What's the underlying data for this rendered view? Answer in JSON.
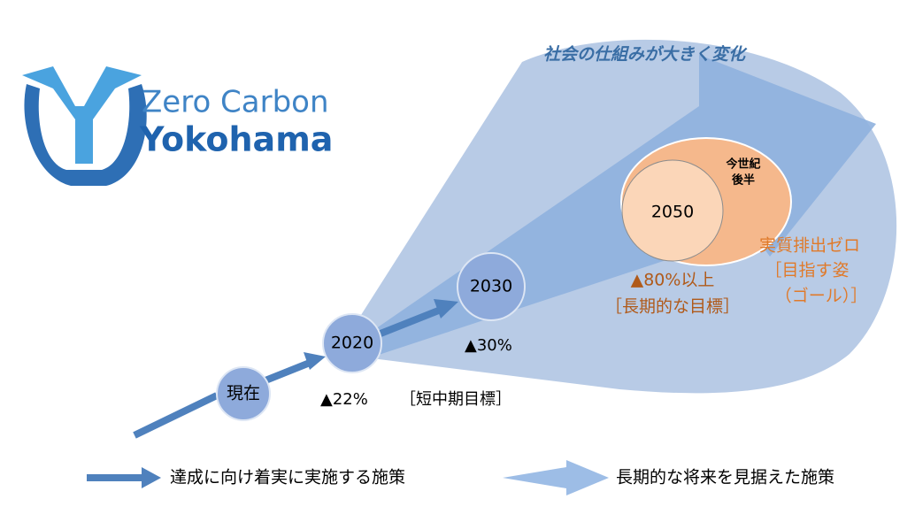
{
  "logo": {
    "line1": "Zero Carbon",
    "line2": "Yokohama"
  },
  "headline": "社会の仕組みが大きく変化",
  "nodes": [
    {
      "label": "現在"
    },
    {
      "label": "2020"
    },
    {
      "label": "2030"
    },
    {
      "label": "2050"
    },
    {
      "label_line1": "今世紀",
      "label_line2": "後半"
    }
  ],
  "annotations": {
    "target_2020": "▲22%",
    "short_mid_term": "［短中期目標］",
    "target_2030": "▲30%",
    "target_2050": "▲80%以上",
    "long_term": "［長期的な目標］",
    "goal_line1": "実質排出ゼロ",
    "goal_line2": "［目指す姿",
    "goal_line3": "（ゴール）］"
  },
  "legend": [
    {
      "label": "達成に向け着実に実施する施策"
    },
    {
      "label": "長期的な将来を見据えた施策"
    }
  ]
}
